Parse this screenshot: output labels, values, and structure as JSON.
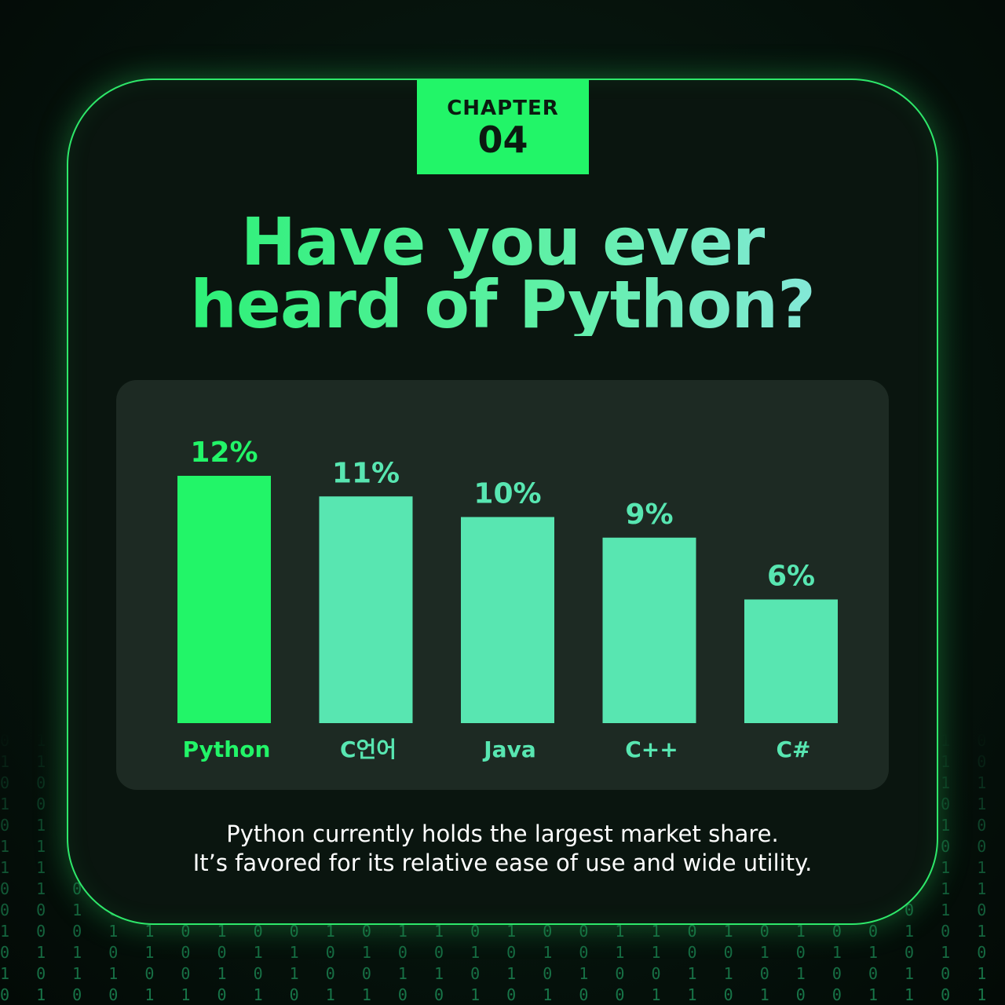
{
  "chapter": {
    "label": "CHAPTER",
    "number": "04"
  },
  "headline": {
    "line1": "Have you ever",
    "line2": "heard of Python?"
  },
  "chart_data": {
    "type": "bar",
    "categories": [
      "Python",
      "C언어",
      "Java",
      "C++",
      "C#"
    ],
    "values": [
      12,
      11,
      10,
      9,
      6
    ],
    "value_labels": [
      "12%",
      "11%",
      "10%",
      "9%",
      "6%"
    ],
    "unit": "%",
    "ylim": [
      0,
      12
    ],
    "grid": false,
    "highlight_index": 0,
    "colors": {
      "highlight": "#22f568",
      "default": "#58e6b1"
    }
  },
  "caption": {
    "line1": "Python currently holds the largest market share.",
    "line2": "It’s favored for its relative ease of use and wide utility."
  },
  "theme": {
    "accent": "#22f568",
    "background": "#06140d",
    "panel": "#1d2a23"
  }
}
